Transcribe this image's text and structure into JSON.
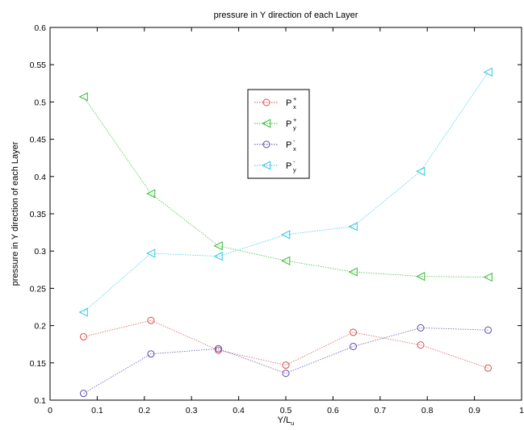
{
  "chart_data": {
    "type": "line",
    "title": "pressure in Y direction of each Layer",
    "xlabel": "Y/L",
    "xlabel_sub": "u",
    "ylabel": "pressure in Y direction of each Layer",
    "xlim": [
      0,
      1
    ],
    "ylim": [
      0.1,
      0.6
    ],
    "xticks": [
      0,
      0.1,
      0.2,
      0.3,
      0.4,
      0.5,
      0.6,
      0.7,
      0.8,
      0.9,
      1
    ],
    "xtick_labels": [
      "0",
      "0.1",
      "0.2",
      "0.3",
      "0.4",
      "0.5",
      "0.6",
      "0.7",
      "0.8",
      "0.9",
      "1"
    ],
    "yticks": [
      0.1,
      0.15,
      0.2,
      0.25,
      0.3,
      0.35,
      0.4,
      0.45,
      0.5,
      0.55,
      0.6
    ],
    "ytick_labels": [
      "0.1",
      "0.15",
      "0.2",
      "0.25",
      "0.3",
      "0.35",
      "0.4",
      "0.45",
      "0.5",
      "0.55",
      "0.6"
    ],
    "grid": false,
    "legend_placement": "upper-center",
    "x": [
      0.071,
      0.214,
      0.357,
      0.5,
      0.643,
      0.786,
      0.929
    ],
    "series": [
      {
        "label_main": "P",
        "label_sup": "+",
        "label_sub": "x",
        "marker": "circle",
        "color": "#d94c4c",
        "values": [
          0.185,
          0.207,
          0.167,
          0.147,
          0.191,
          0.174,
          0.143
        ]
      },
      {
        "label_main": "P",
        "label_sup": "+",
        "label_sub": "y",
        "marker": "triangle-left",
        "color": "#33bb33",
        "values": [
          0.507,
          0.377,
          0.307,
          0.287,
          0.272,
          0.266,
          0.265
        ]
      },
      {
        "label_main": "P",
        "label_sup": "-",
        "label_sub": "x",
        "marker": "circle",
        "color": "#5a4ab0",
        "values": [
          0.109,
          0.162,
          0.169,
          0.136,
          0.172,
          0.197,
          0.194
        ]
      },
      {
        "label_main": "P",
        "label_sup": "-",
        "label_sub": "y",
        "marker": "triangle-left",
        "color": "#33c6e6",
        "values": [
          0.218,
          0.297,
          0.293,
          0.322,
          0.333,
          0.407,
          0.54
        ]
      }
    ]
  }
}
